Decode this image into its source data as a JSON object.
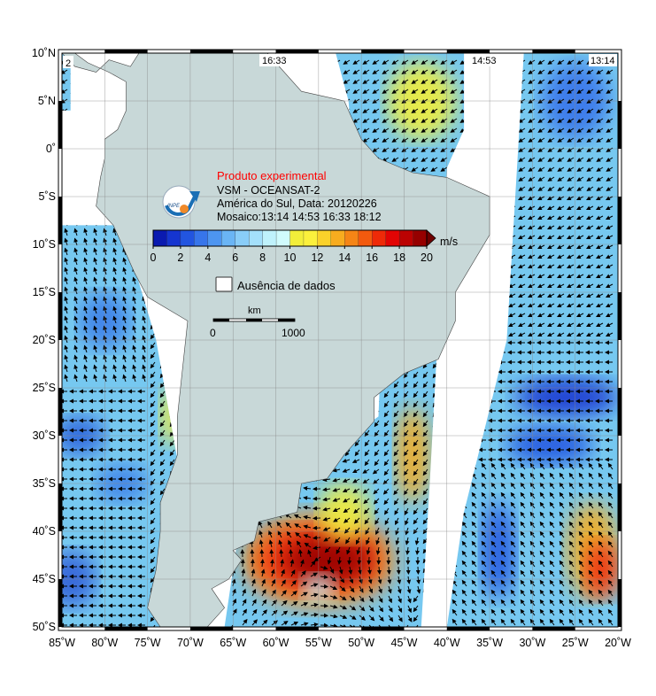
{
  "header": {
    "subtitle": "Produto experimental",
    "sensor": "VSM - OCEANSAT-2",
    "region_date": "América do Sul, Data: 20120226",
    "mosaic": "Mosaico:13:14 14:53 16:33 18:12",
    "logo_text": "INPE"
  },
  "colorbar": {
    "unit": "m/s",
    "ticks": [
      "0",
      "2",
      "4",
      "6",
      "8",
      "10",
      "12",
      "14",
      "16",
      "18",
      "20"
    ],
    "colors": [
      "#0a1ab0",
      "#1535d0",
      "#2255e0",
      "#3775ea",
      "#4d95f0",
      "#6ab5f5",
      "#89cdf8",
      "#a4e0fb",
      "#bff2fc",
      "#d0fbfd",
      "#f2ee3a",
      "#fbf03c",
      "#fad22a",
      "#f7ac1f",
      "#f58516",
      "#f25a0e",
      "#ee2a08",
      "#e20404",
      "#bb0202",
      "#960000"
    ],
    "over_color": "#6e0000"
  },
  "no_data_legend": "Ausência de dados",
  "scale_bar": {
    "unit": "km",
    "start": "0",
    "end": "1000"
  },
  "swath_labels": [
    "2",
    "16:33",
    "14:53",
    "13:14"
  ],
  "axes": {
    "lon_labels": [
      "85˚W",
      "80˚W",
      "75˚W",
      "70˚W",
      "65˚W",
      "60˚W",
      "55˚W",
      "50˚W",
      "45˚W",
      "40˚W",
      "35˚W",
      "30˚W",
      "25˚W",
      "20˚W"
    ],
    "lat_labels": [
      "10˚N",
      "5˚N",
      "0˚",
      "5˚S",
      "10˚S",
      "15˚S",
      "20˚S",
      "25˚S",
      "30˚S",
      "35˚S",
      "40˚S",
      "45˚S",
      "50˚S"
    ],
    "lon_range": [
      -85,
      -20
    ],
    "lat_range": [
      -50,
      10
    ]
  },
  "colors": {
    "land": "#c8d8d8",
    "ocean_no_data": "#ffffff",
    "wind_base": "#76c8f0"
  }
}
